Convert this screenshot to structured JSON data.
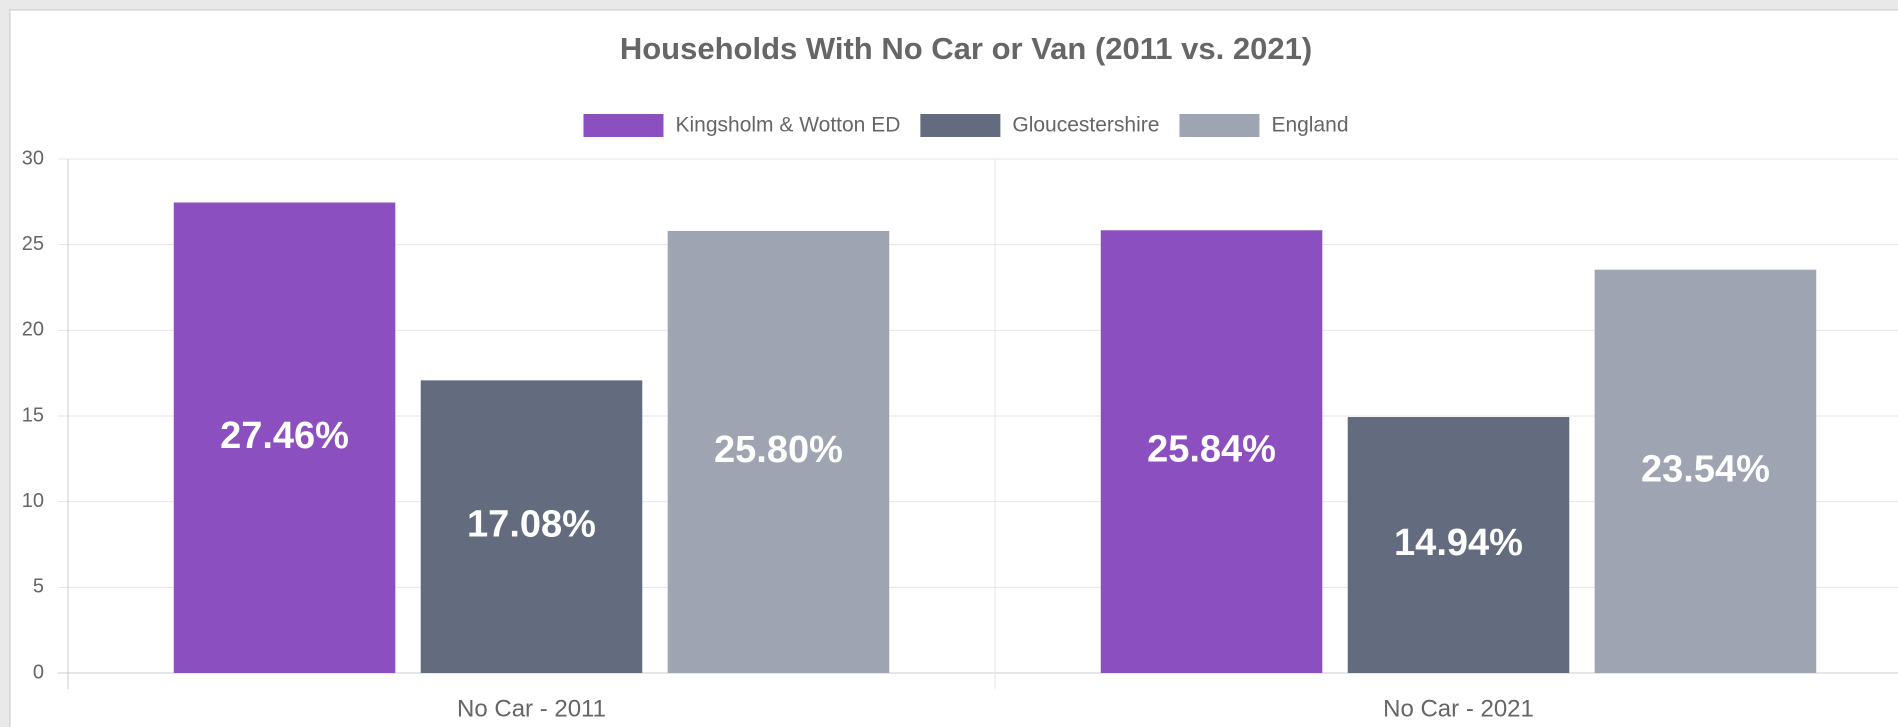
{
  "chart_data": {
    "type": "bar",
    "title": "Households With No Car or Van (2011 vs. 2021)",
    "categories": [
      "No Car - 2011",
      "No Car - 2021"
    ],
    "series": [
      {
        "name": "Kingsholm & Wotton ED",
        "color": "#8b4fbf",
        "values": [
          27.46,
          25.84
        ],
        "value_labels": [
          "27.46%",
          "25.84%"
        ]
      },
      {
        "name": "Gloucestershire",
        "color": "#626c7e",
        "values": [
          17.08,
          14.94
        ],
        "value_labels": [
          "17.08%",
          "14.94%"
        ]
      },
      {
        "name": "England",
        "color": "#9ea4b1",
        "values": [
          25.8,
          23.54
        ],
        "value_labels": [
          "25.80%",
          "23.54%"
        ]
      }
    ],
    "ylim": [
      0,
      30
    ],
    "yticks": [
      0,
      5,
      10,
      15,
      20,
      25,
      30
    ],
    "grid": true,
    "legend": "top"
  }
}
